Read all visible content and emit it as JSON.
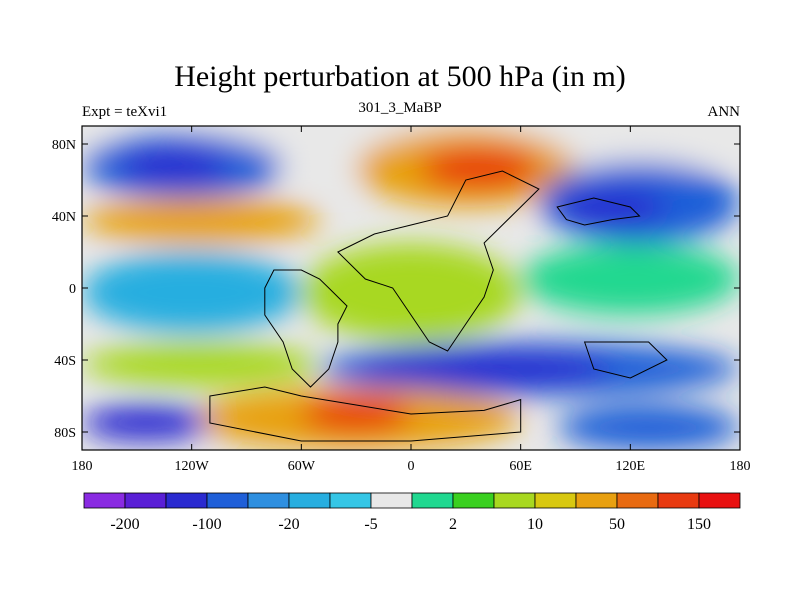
{
  "header": {
    "title": "Height perturbation at 500 hPa (in m)",
    "left_label": "Expt = teXvi1",
    "center_label": "301_3_MaBP",
    "right_label": "ANN"
  },
  "chart_data": {
    "type": "heatmap",
    "x_range": [
      -180,
      180
    ],
    "y_range": [
      -90,
      90
    ],
    "x_ticks": [
      {
        "value": -180,
        "label": "180"
      },
      {
        "value": -120,
        "label": "120W"
      },
      {
        "value": -60,
        "label": "60W"
      },
      {
        "value": 0,
        "label": "0"
      },
      {
        "value": 60,
        "label": "60E"
      },
      {
        "value": 120,
        "label": "120E"
      },
      {
        "value": 180,
        "label": "180"
      }
    ],
    "y_ticks": [
      {
        "value": 80,
        "label": "80N"
      },
      {
        "value": 40,
        "label": "40N"
      },
      {
        "value": 0,
        "label": "0"
      },
      {
        "value": -40,
        "label": "40S"
      },
      {
        "value": -80,
        "label": "80S"
      }
    ],
    "colorbar": {
      "colors": [
        "#8a2be2",
        "#5a1fd6",
        "#2a2ad0",
        "#1f5fd8",
        "#2e8fe0",
        "#27aee0",
        "#35c6e6",
        "#e8e8e8",
        "#20d890",
        "#3ad020",
        "#a8d820",
        "#d8c810",
        "#e8a010",
        "#e86a10",
        "#e83a10",
        "#e81010"
      ],
      "labels": [
        {
          "after_index": 0,
          "text": "-200"
        },
        {
          "after_index": 2,
          "text": "-100"
        },
        {
          "after_index": 4,
          "text": "-20"
        },
        {
          "after_index": 6,
          "text": "-5"
        },
        {
          "after_index": 8,
          "text": "2"
        },
        {
          "after_index": 10,
          "text": "10"
        },
        {
          "after_index": 12,
          "text": "50"
        },
        {
          "after_index": 14,
          "text": "150"
        }
      ]
    },
    "field_regions": [
      {
        "name": "north-pole-band",
        "lon": [
          -180,
          180
        ],
        "lat": [
          60,
          90
        ],
        "level": 0
      },
      {
        "name": "north-pacific-low",
        "lon": [
          -180,
          -70
        ],
        "lat": [
          50,
          85
        ],
        "level": -20
      },
      {
        "name": "north-pacific-low-core",
        "lon": [
          -160,
          -100
        ],
        "lat": [
          58,
          78
        ],
        "level": -100
      },
      {
        "name": "north-atlantic-high",
        "lon": [
          -30,
          90
        ],
        "lat": [
          45,
          88
        ],
        "level": 50
      },
      {
        "name": "north-atlantic-high-core",
        "lon": [
          5,
          70
        ],
        "lat": [
          55,
          78
        ],
        "level": 150
      },
      {
        "name": "asia-low",
        "lon": [
          70,
          180
        ],
        "lat": [
          25,
          70
        ],
        "level": -20
      },
      {
        "name": "asia-low-core",
        "lon": [
          80,
          140
        ],
        "lat": [
          35,
          55
        ],
        "level": -100
      },
      {
        "name": "midlat-high-west",
        "lon": [
          -180,
          -50
        ],
        "lat": [
          25,
          50
        ],
        "level": 50
      },
      {
        "name": "tropics-west",
        "lon": [
          -180,
          -60
        ],
        "lat": [
          -25,
          20
        ],
        "level": -5
      },
      {
        "name": "tropics-central",
        "lon": [
          -60,
          60
        ],
        "lat": [
          -30,
          25
        ],
        "level": 10
      },
      {
        "name": "tropics-east",
        "lon": [
          60,
          180
        ],
        "lat": [
          -15,
          25
        ],
        "level": 2
      },
      {
        "name": "southern-low-band",
        "lon": [
          -50,
          180
        ],
        "lat": [
          -60,
          -30
        ],
        "level": -20
      },
      {
        "name": "southern-low-core",
        "lon": [
          -30,
          110
        ],
        "lat": [
          -55,
          -35
        ],
        "level": -100
      },
      {
        "name": "southern-high-west",
        "lon": [
          -180,
          -50
        ],
        "lat": [
          -55,
          -30
        ],
        "level": 10
      },
      {
        "name": "antarctic-high",
        "lon": [
          -120,
          60
        ],
        "lat": [
          -90,
          -55
        ],
        "level": 50
      },
      {
        "name": "antarctic-high-core",
        "lon": [
          -60,
          0
        ],
        "lat": [
          -80,
          -60
        ],
        "level": 150
      },
      {
        "name": "antarctic-low-west",
        "lon": [
          -180,
          -110
        ],
        "lat": [
          -85,
          -65
        ],
        "level": -100
      },
      {
        "name": "antarctic-low-east",
        "lon": [
          80,
          180
        ],
        "lat": [
          -90,
          -65
        ],
        "level": -20
      }
    ]
  }
}
